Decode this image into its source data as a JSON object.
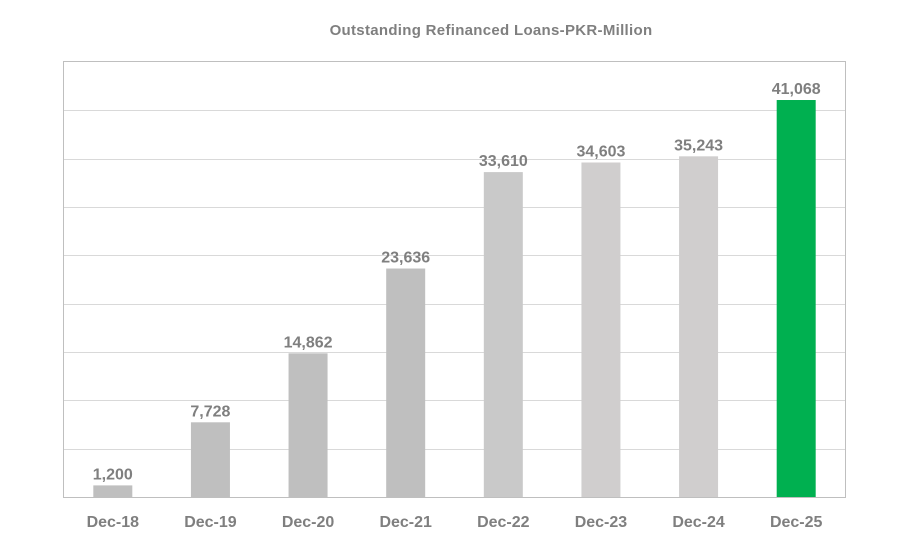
{
  "chart_data": {
    "type": "bar",
    "title": "Outstanding Refinanced Loans-PKR-Million",
    "xlabel": "",
    "ylabel": "",
    "categories": [
      "Dec-18",
      "Dec-19",
      "Dec-20",
      "Dec-21",
      "Dec-22",
      "Dec-23",
      "Dec-24",
      "Dec-25"
    ],
    "values": [
      1200,
      7728,
      14862,
      23636,
      33610,
      34603,
      35243,
      41068
    ],
    "data_labels": [
      "1,200",
      "7,728",
      "14,862",
      "23,636",
      "33,610",
      "34,603",
      "35,243",
      "41,068"
    ],
    "ylim": [
      0,
      45000
    ],
    "grid": true,
    "legend": "none",
    "colors": [
      "#bfbfbf",
      "#bfbfbf",
      "#bfbfbf",
      "#bfbfbf",
      "#c9c9c9",
      "#d0cece",
      "#d0cece",
      "#00b050"
    ],
    "gridline_color": "#d9d9d9",
    "frame_color": "#bfbfbf"
  }
}
